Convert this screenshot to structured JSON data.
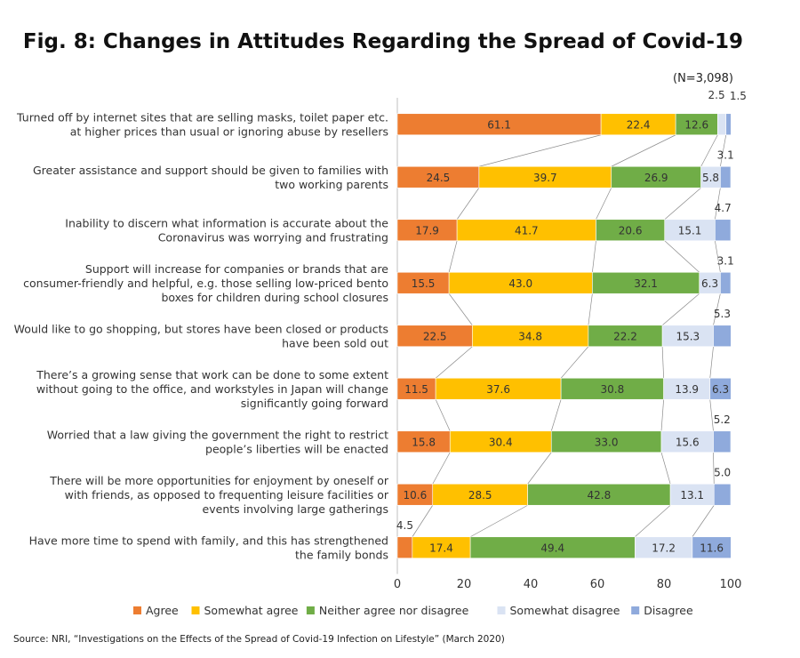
{
  "title": "Fig. 8: Changes in Attitudes Regarding the Spread of Covid-19",
  "note": "(N=3,098)",
  "source": "Source: NRI, “Investigations on the Effects of the Spread of Covid-19 Infection on Lifestyle” (March 2020)",
  "chart_data": {
    "type": "bar",
    "orientation": "horizontal-stacked-100",
    "xlim": [
      0,
      100
    ],
    "xticks": [
      "0",
      "20",
      "40",
      "60",
      "80",
      "100"
    ],
    "legend_position": "bottom",
    "series_colors": [
      "#ED7D31",
      "#FFC000",
      "#70AD47",
      "#DAE3F3",
      "#8FAADC"
    ],
    "series": [
      {
        "name": "Agree",
        "values": [
          61.1,
          24.5,
          17.9,
          15.5,
          22.5,
          11.5,
          15.8,
          10.6,
          4.5
        ]
      },
      {
        "name": "Somewhat agree",
        "values": [
          22.4,
          39.7,
          41.7,
          43.0,
          34.8,
          37.6,
          30.4,
          28.5,
          17.4
        ]
      },
      {
        "name": "Neither agree nor disagree",
        "values": [
          12.6,
          26.9,
          20.6,
          32.1,
          22.2,
          30.8,
          33.0,
          42.8,
          49.4
        ]
      },
      {
        "name": "Somewhat disagree",
        "values": [
          2.5,
          5.8,
          15.1,
          6.3,
          15.3,
          13.9,
          15.6,
          13.1,
          17.2
        ]
      },
      {
        "name": "Disagree",
        "values": [
          1.5,
          3.1,
          4.7,
          3.1,
          5.3,
          6.3,
          5.2,
          5.0,
          11.6
        ]
      }
    ],
    "labels": [
      {
        "value": "61.1",
        "n": 1
      },
      {
        "value": "22.4",
        "n": 1
      },
      {
        "value": "12.6",
        "n": 1
      },
      {
        "value": "2.5",
        "n": 1
      },
      {
        "value": "1.5",
        "n": 1
      }
    ],
    "categories": [
      [
        "Turned off by internet sites that are selling masks, toilet paper etc.",
        "at higher prices than usual or ignoring abuse by resellers"
      ],
      [
        "Greater assistance and support should be given to families with",
        "two working parents"
      ],
      [
        "Inability to discern what information is accurate about the",
        "Coronavirus was worrying and frustrating"
      ],
      [
        "Support will increase for companies or brands that are",
        "consumer-friendly and helpful, e.g. those selling low-priced bento",
        "boxes for children during school closures"
      ],
      [
        "Would like to go shopping, but stores have been closed or products",
        "have been sold out"
      ],
      [
        "There’s a growing sense that work can be done to some extent",
        "without going to the office, and workstyles in Japan will change",
        "significantly going forward"
      ],
      [
        "Worried that a law giving the government the right to restrict",
        "people’s liberties will be enacted"
      ],
      [
        "There will be more opportunities for enjoyment by oneself or",
        "with friends, as opposed to frequenting leisure facilities or",
        "events involving large gatherings"
      ],
      [
        "Have more time to spend with family, and this has strengthened",
        "the family bonds"
      ]
    ],
    "value_labels": [
      [
        "61.1",
        "22.4",
        "12.6",
        "2.5",
        "1.5"
      ],
      [
        "24.5",
        "39.7",
        "26.9",
        "5.8",
        "3.1"
      ],
      [
        "17.9",
        "41.7",
        "20.6",
        "15.1",
        "4.7"
      ],
      [
        "15.5",
        "43.0",
        "32.1",
        "6.3",
        "3.1"
      ],
      [
        "22.5",
        "34.8",
        "22.2",
        "15.3",
        "5.3"
      ],
      [
        "11.5",
        "37.6",
        "30.8",
        "13.9",
        "6.3"
      ],
      [
        "15.8",
        "30.4",
        "33.0",
        "15.6",
        "5.2"
      ],
      [
        "10.6",
        "28.5",
        "42.8",
        "13.1",
        "5.0"
      ],
      [
        "4.5",
        "17.4",
        "49.4",
        "17.2",
        "11.6"
      ]
    ]
  }
}
